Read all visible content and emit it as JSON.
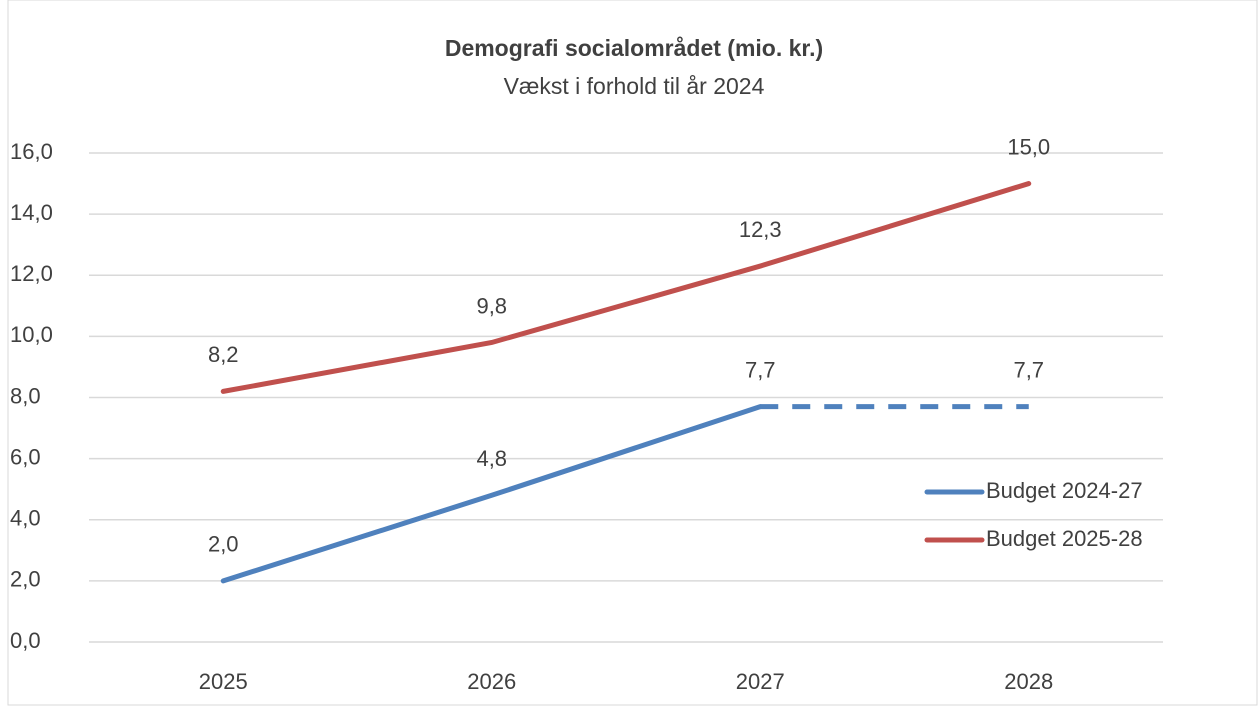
{
  "chart_data": {
    "type": "line",
    "title": "Demografi socialområdet  (mio. kr.)",
    "subtitle": "Vækst i forhold til år 2024",
    "categories": [
      "2025",
      "2026",
      "2027",
      "2028"
    ],
    "series": [
      {
        "name": "Budget 2024-27",
        "color": "#4f81bd",
        "values": [
          2.0,
          4.8,
          7.7,
          7.7
        ],
        "value_labels": [
          "2,0",
          "4,8",
          "7,7",
          "7,7"
        ],
        "dashed_segments": [
          2
        ]
      },
      {
        "name": "Budget 2025-28",
        "color": "#c0504d",
        "values": [
          8.2,
          9.8,
          12.3,
          15.0
        ],
        "value_labels": [
          "8,2",
          "9,8",
          "12,3",
          "15,0"
        ],
        "dashed_segments": []
      }
    ],
    "ylim": [
      0,
      16
    ],
    "yticks": [
      {
        "value": 0,
        "label": "0,0"
      },
      {
        "value": 2,
        "label": "2,0"
      },
      {
        "value": 4,
        "label": "4,0"
      },
      {
        "value": 6,
        "label": "6,0"
      },
      {
        "value": 8,
        "label": "8,0"
      },
      {
        "value": 10,
        "label": "10,0"
      },
      {
        "value": 12,
        "label": "12,0"
      },
      {
        "value": 14,
        "label": "14,0"
      },
      {
        "value": 16,
        "label": "16,0"
      }
    ],
    "grid": true,
    "legend": "right"
  }
}
